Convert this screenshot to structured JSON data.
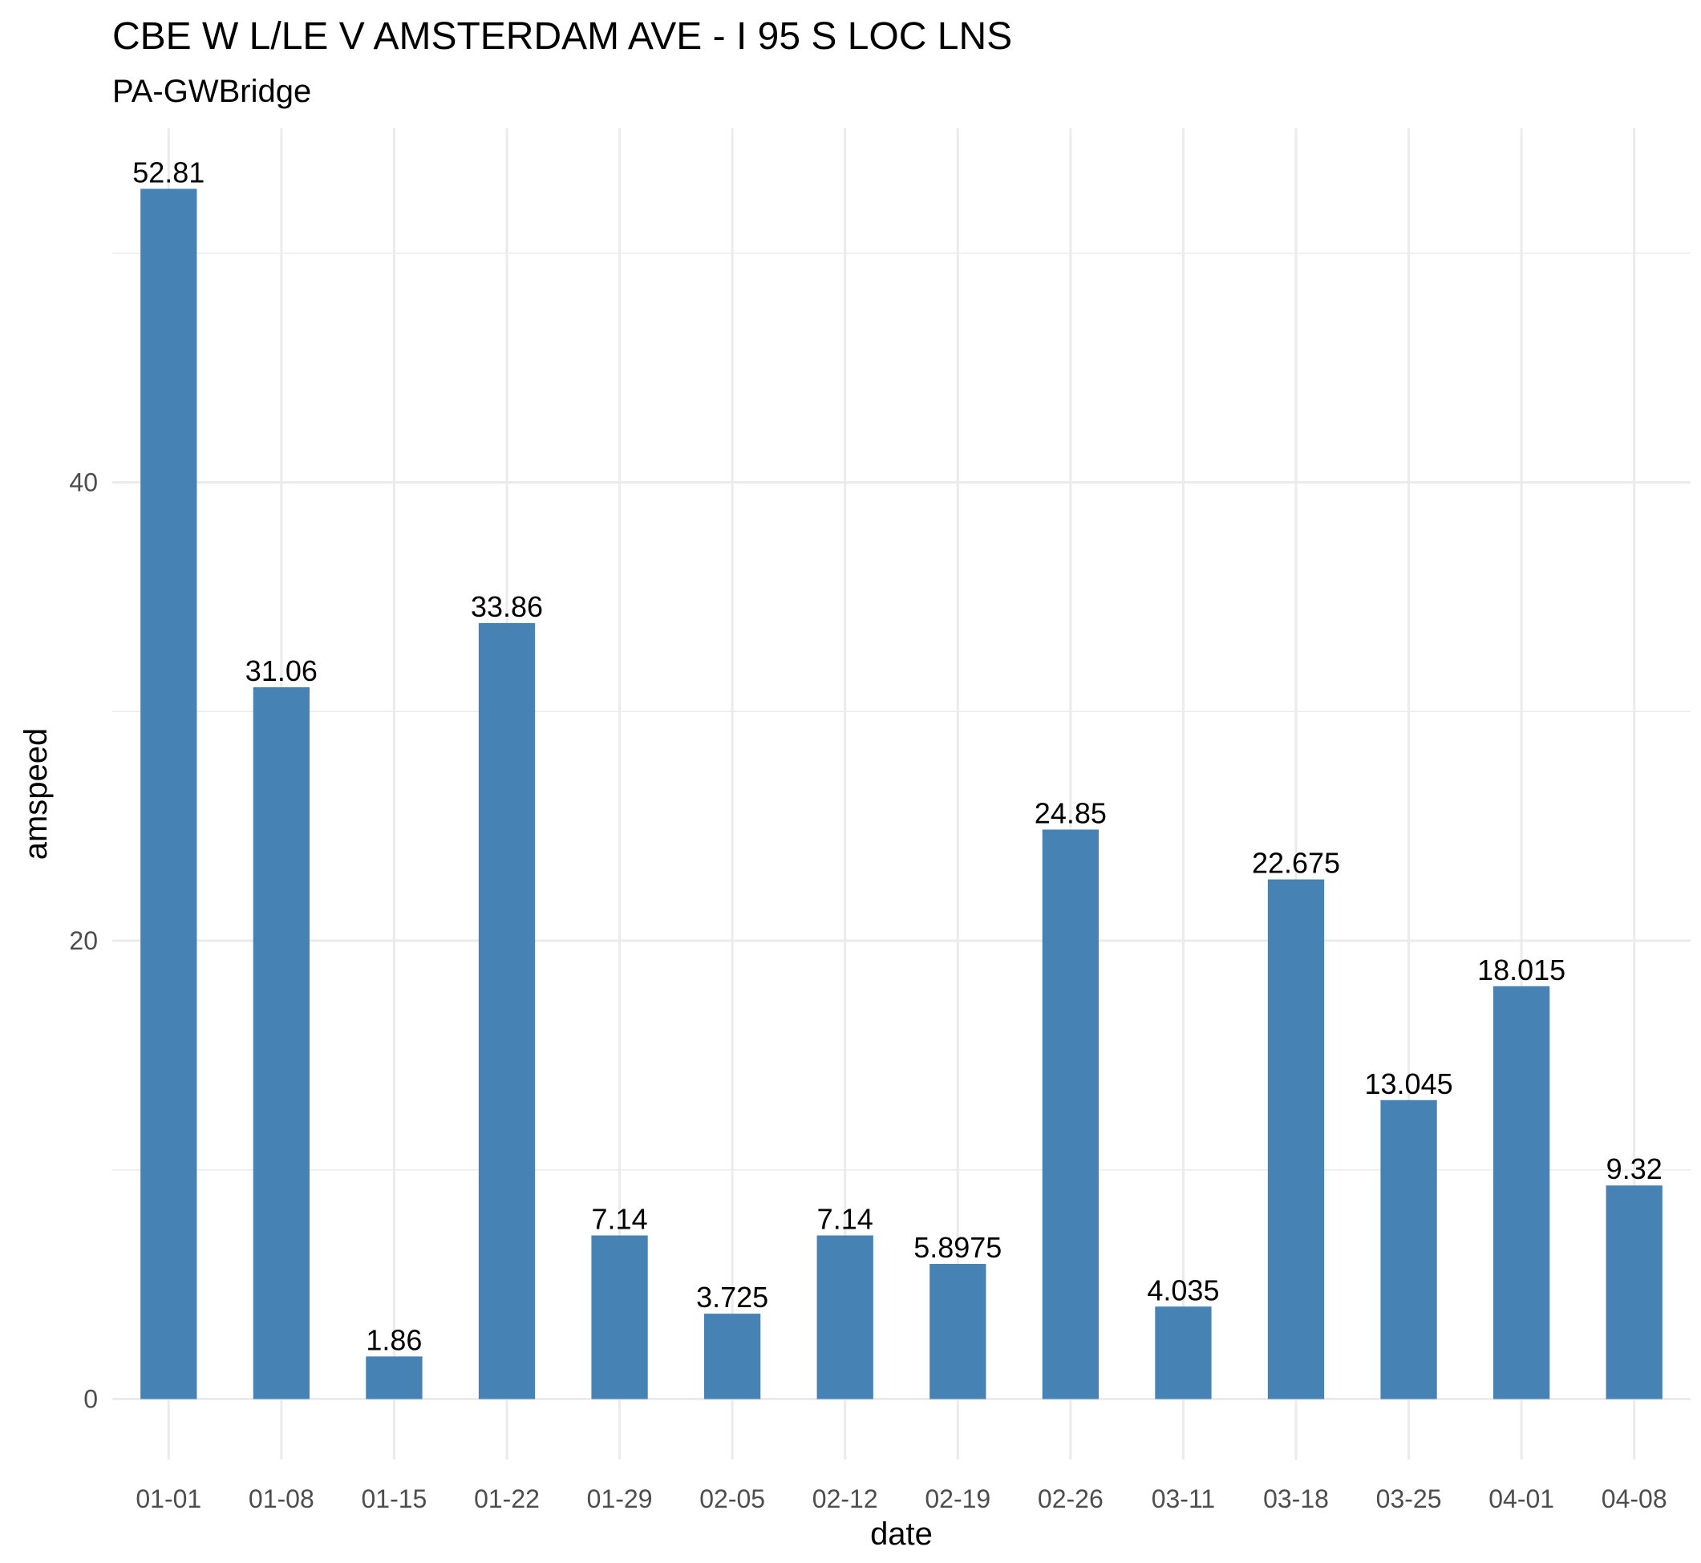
{
  "chart_data": {
    "type": "bar",
    "title": "CBE W L/LE V AMSTERDAM AVE - I 95 S LOC LNS",
    "subtitle": "PA-GWBridge",
    "xlabel": "date",
    "ylabel": "amspeed",
    "categories": [
      "01-01",
      "01-08",
      "01-15",
      "01-22",
      "01-29",
      "02-05",
      "02-12",
      "02-19",
      "02-26",
      "03-11",
      "03-18",
      "03-25",
      "04-01",
      "04-08"
    ],
    "values": [
      52.81,
      31.06,
      1.86,
      33.86,
      7.14,
      3.725,
      7.14,
      5.8975,
      24.85,
      4.035,
      22.675,
      13.045,
      18.015,
      9.32
    ],
    "data_labels": [
      "52.81",
      "31.06",
      "1.86",
      "33.86",
      "7.14",
      "3.725",
      "7.14",
      "5.8975",
      "24.85",
      "4.035",
      "22.675",
      "13.045",
      "18.015",
      "9.32"
    ],
    "y_ticks": [
      0,
      20,
      40
    ],
    "y_tick_labels": [
      "0",
      "20",
      "40"
    ],
    "ylim": [
      -2.64,
      55.45
    ],
    "grid": true,
    "legend": "none",
    "bar_color": "#4682B4",
    "grid_color": "#EBEBEB"
  }
}
